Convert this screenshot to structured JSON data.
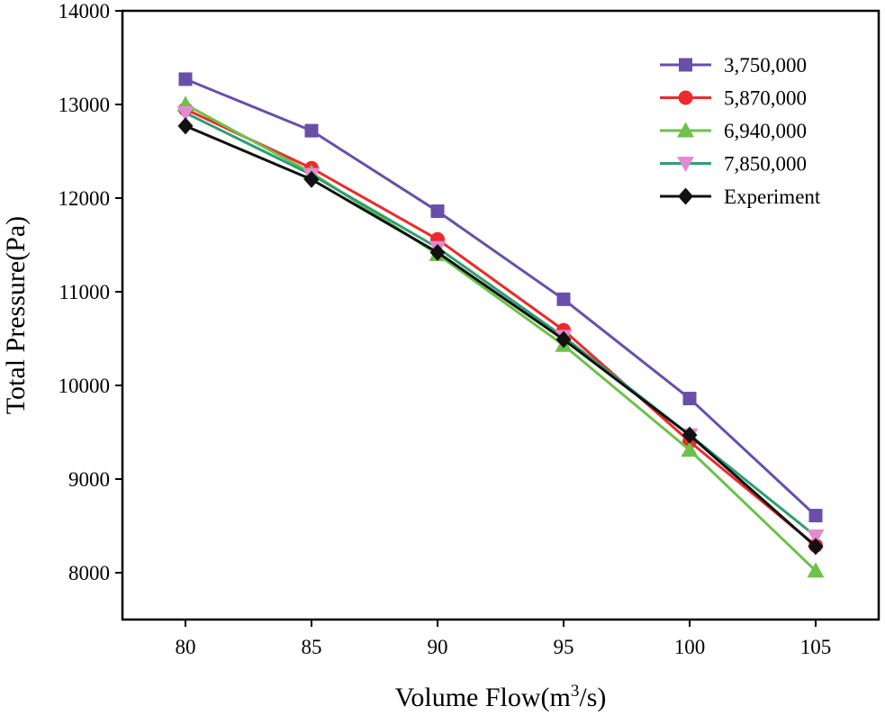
{
  "chart_data": {
    "type": "line",
    "title": "",
    "xlabel": "Volume Flow(m",
    "xlabel_sup": "3",
    "xlabel_tail": "/s)",
    "ylabel": "Total Pressure(Pa)",
    "x": [
      80,
      85,
      90,
      95,
      100,
      105
    ],
    "xticks": [
      "80",
      "85",
      "90",
      "95",
      "100",
      "105"
    ],
    "yticks": [
      "8000",
      "9000",
      "10000",
      "11000",
      "12000",
      "13000",
      "14000"
    ],
    "ytick_values": [
      8000,
      9000,
      10000,
      11000,
      12000,
      13000,
      14000
    ],
    "xlim": [
      77.5,
      107.5
    ],
    "ylim": [
      7500,
      14000
    ],
    "legend_position": "top-right",
    "series": [
      {
        "name": "3,750,000",
        "color": "#6a4fa8",
        "marker": "square",
        "values": [
          13270,
          12720,
          11860,
          10920,
          9860,
          8610
        ]
      },
      {
        "name": "5,870,000",
        "color": "#ee2a2a",
        "marker": "circle",
        "values": [
          12950,
          12320,
          11560,
          10590,
          9400,
          8290
        ]
      },
      {
        "name": "6,940,000",
        "color": "#6cc24a",
        "marker": "triangle-up",
        "values": [
          13000,
          12270,
          11400,
          10430,
          9310,
          8020
        ]
      },
      {
        "name": "7,850,000",
        "color": "#2f9e72",
        "marker": "triangle-down",
        "marker_color": "#e38bd0",
        "values": [
          12910,
          12250,
          11470,
          10520,
          9470,
          8390
        ]
      },
      {
        "name": "Experiment",
        "color": "#111111",
        "marker": "diamond",
        "values": [
          12770,
          12200,
          11420,
          10490,
          9470,
          8280
        ]
      }
    ]
  }
}
